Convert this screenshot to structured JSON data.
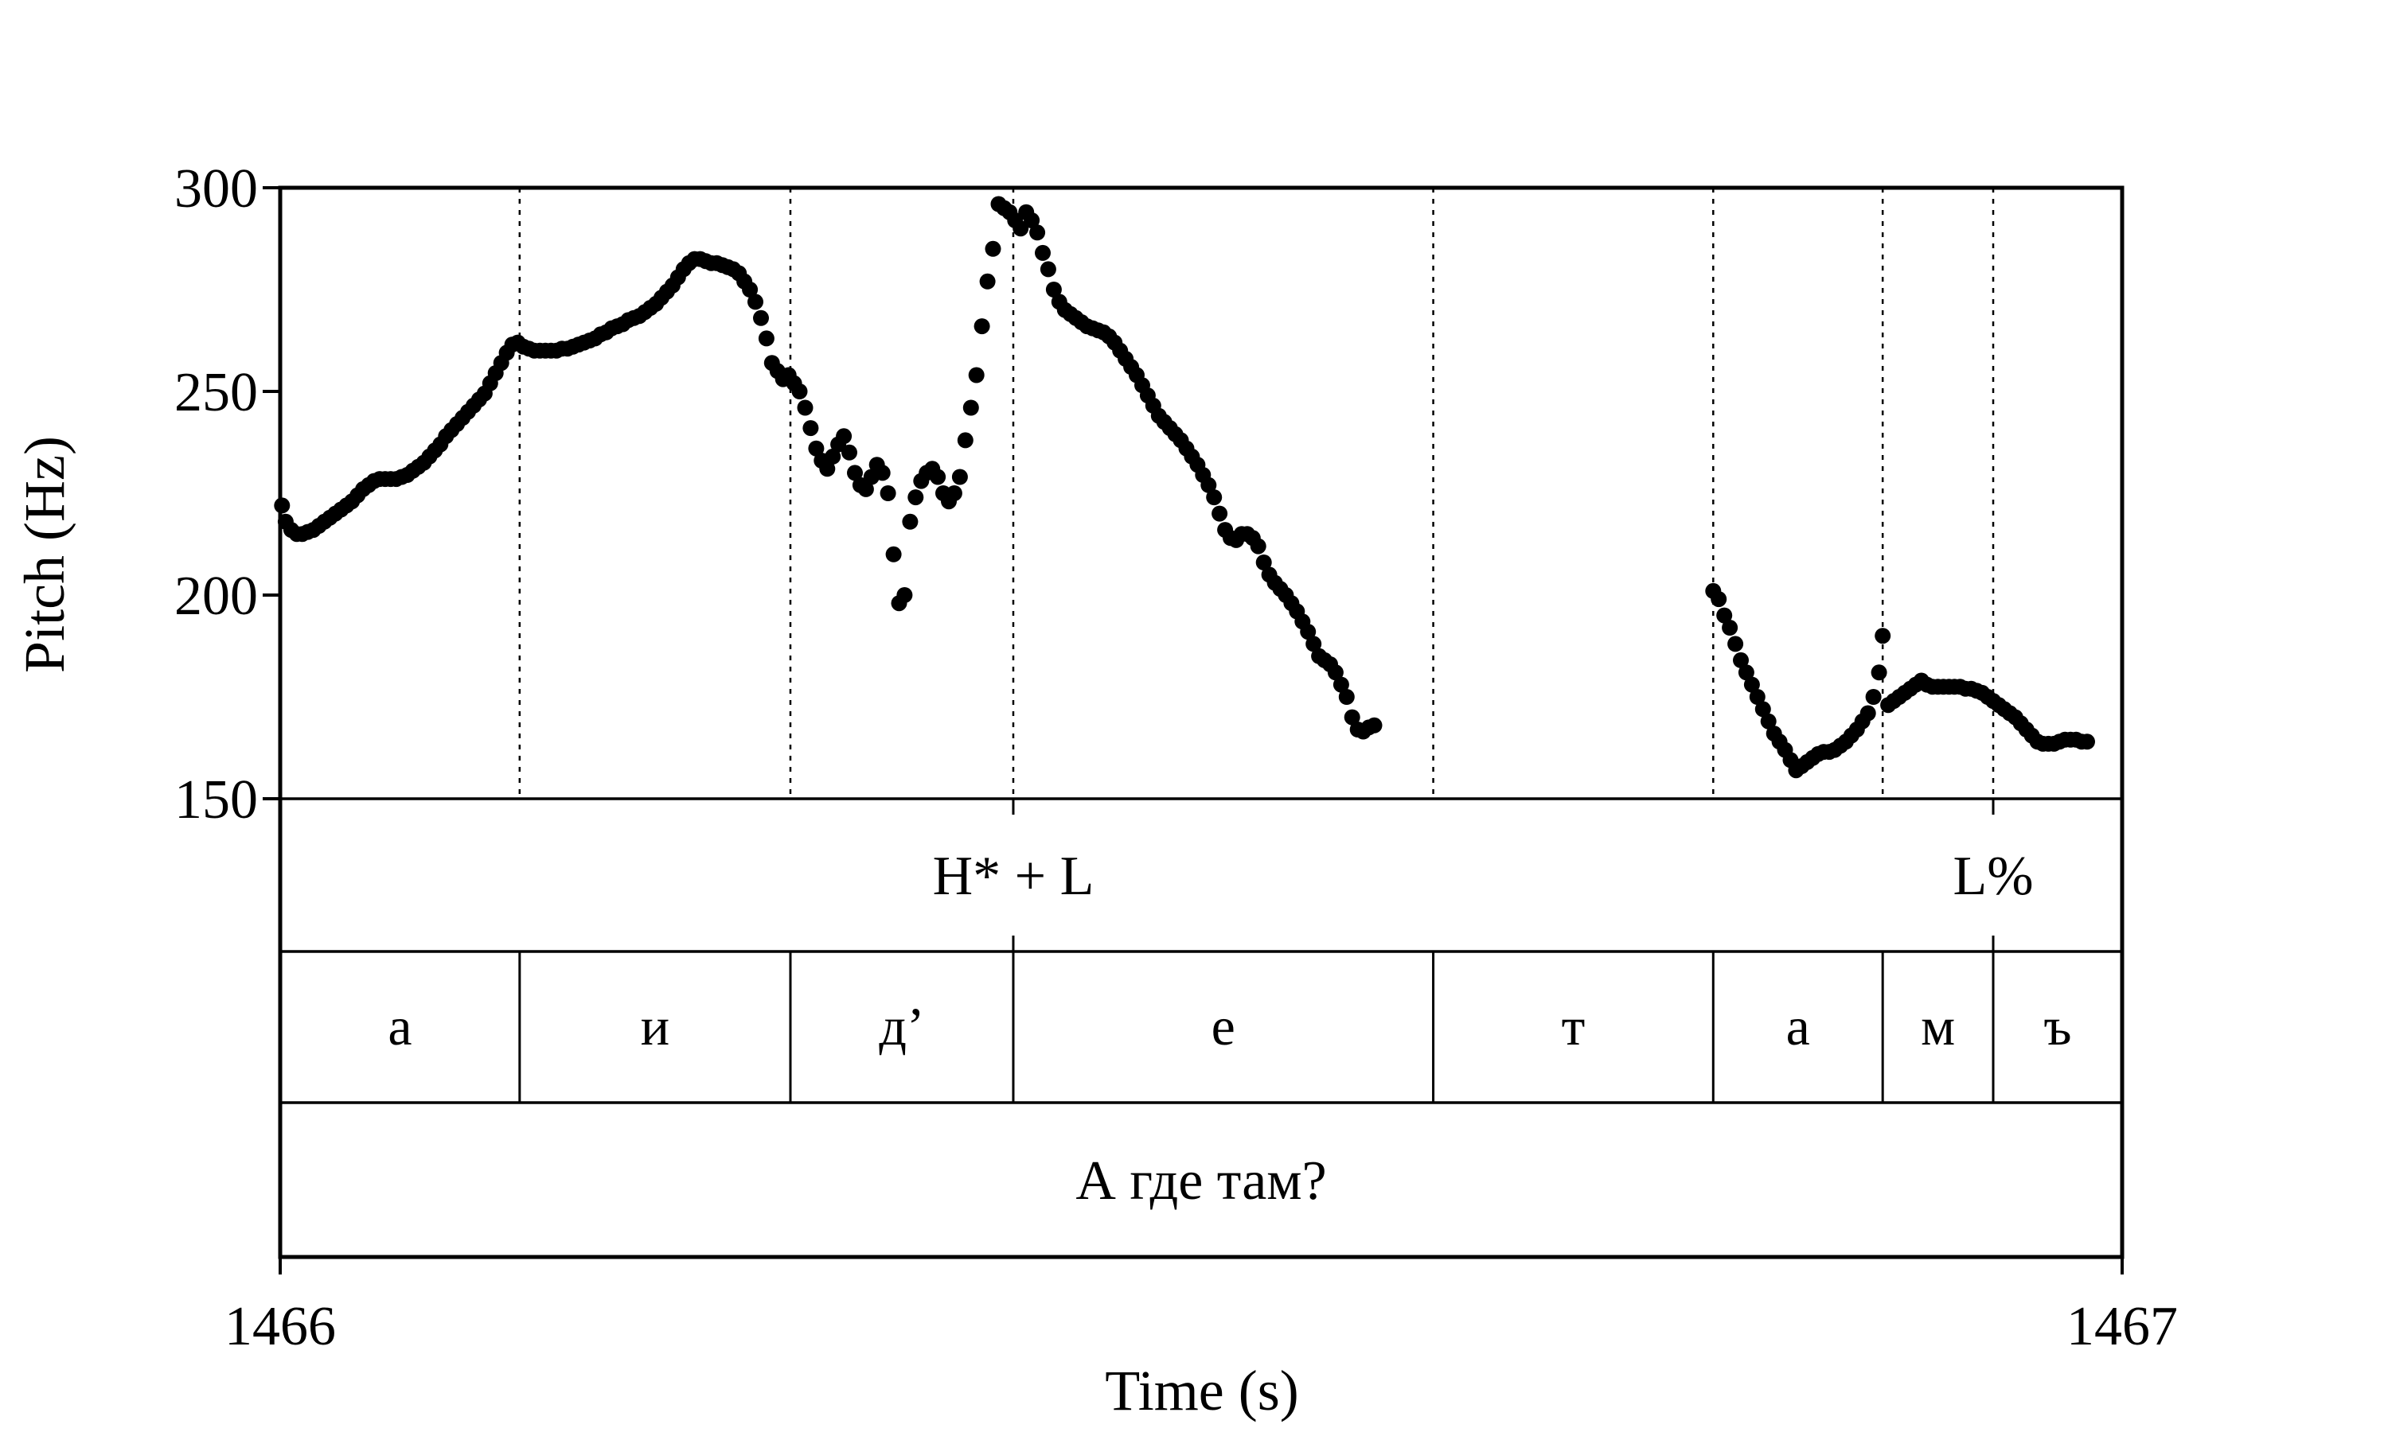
{
  "chart_data": {
    "type": "scatter",
    "xlabel": "Time (s)",
    "ylabel": "Pitch (Hz)",
    "xlim": [
      1466,
      1467
    ],
    "ylim": [
      150,
      300
    ],
    "x_ticks": [
      "1466",
      "1467"
    ],
    "y_ticks": [
      "300",
      "250",
      "200",
      "150"
    ],
    "series": [
      {
        "points": [
          [
            1466.001,
            222
          ],
          [
            1466.003,
            218
          ],
          [
            1466.006,
            216
          ],
          [
            1466.009,
            215
          ],
          [
            1466.012,
            215
          ],
          [
            1466.015,
            215.5
          ],
          [
            1466.018,
            216
          ],
          [
            1466.021,
            217
          ],
          [
            1466.024,
            218
          ],
          [
            1466.027,
            219
          ],
          [
            1466.03,
            220
          ],
          [
            1466.033,
            221
          ],
          [
            1466.036,
            222
          ],
          [
            1466.039,
            223
          ],
          [
            1466.042,
            224.5
          ],
          [
            1466.045,
            226
          ],
          [
            1466.048,
            227
          ],
          [
            1466.051,
            228
          ],
          [
            1466.054,
            228.5
          ],
          [
            1466.057,
            228.5
          ],
          [
            1466.06,
            228.5
          ],
          [
            1466.063,
            228.5
          ],
          [
            1466.066,
            229
          ],
          [
            1466.069,
            229.5
          ],
          [
            1466.072,
            230.5
          ],
          [
            1466.075,
            231.5
          ],
          [
            1466.078,
            232.5
          ],
          [
            1466.081,
            234
          ],
          [
            1466.084,
            235.5
          ],
          [
            1466.087,
            237
          ],
          [
            1466.09,
            239
          ],
          [
            1466.093,
            240.5
          ],
          [
            1466.096,
            242
          ],
          [
            1466.099,
            243.5
          ],
          [
            1466.102,
            245
          ],
          [
            1466.105,
            246.5
          ],
          [
            1466.108,
            248
          ],
          [
            1466.111,
            249.5
          ],
          [
            1466.114,
            252
          ],
          [
            1466.117,
            254.5
          ],
          [
            1466.12,
            257
          ],
          [
            1466.123,
            259.5
          ],
          [
            1466.126,
            261.5
          ],
          [
            1466.129,
            262
          ],
          [
            1466.132,
            261
          ],
          [
            1466.135,
            260.5
          ],
          [
            1466.138,
            260
          ],
          [
            1466.141,
            260
          ],
          [
            1466.144,
            260
          ],
          [
            1466.147,
            260
          ],
          [
            1466.15,
            260
          ],
          [
            1466.153,
            260.5
          ],
          [
            1466.156,
            260.5
          ],
          [
            1466.159,
            261
          ],
          [
            1466.162,
            261.5
          ],
          [
            1466.165,
            262
          ],
          [
            1466.168,
            262.5
          ],
          [
            1466.171,
            263
          ],
          [
            1466.174,
            264
          ],
          [
            1466.177,
            264.5
          ],
          [
            1466.18,
            265.5
          ],
          [
            1466.183,
            266
          ],
          [
            1466.186,
            266.5
          ],
          [
            1466.189,
            267.5
          ],
          [
            1466.192,
            268
          ],
          [
            1466.195,
            268.5
          ],
          [
            1466.198,
            269.5
          ],
          [
            1466.201,
            270.5
          ],
          [
            1466.204,
            271.5
          ],
          [
            1466.207,
            273
          ],
          [
            1466.21,
            274.5
          ],
          [
            1466.213,
            276
          ],
          [
            1466.216,
            278
          ],
          [
            1466.219,
            280
          ],
          [
            1466.222,
            281.5
          ],
          [
            1466.225,
            282.5
          ],
          [
            1466.228,
            282.5
          ],
          [
            1466.231,
            282
          ],
          [
            1466.234,
            281.5
          ],
          [
            1466.237,
            281.5
          ],
          [
            1466.24,
            281
          ],
          [
            1466.243,
            280.5
          ],
          [
            1466.246,
            280
          ],
          [
            1466.249,
            279
          ],
          [
            1466.252,
            277
          ],
          [
            1466.255,
            275
          ],
          [
            1466.258,
            272
          ],
          [
            1466.261,
            268
          ],
          [
            1466.264,
            263
          ],
          [
            1466.267,
            257
          ],
          [
            1466.27,
            255
          ],
          [
            1466.273,
            253
          ],
          [
            1466.276,
            254
          ],
          [
            1466.279,
            252
          ],
          [
            1466.282,
            250
          ],
          [
            1466.285,
            246
          ],
          [
            1466.288,
            241
          ],
          [
            1466.291,
            236
          ],
          [
            1466.294,
            233
          ],
          [
            1466.297,
            231
          ],
          [
            1466.3,
            234
          ],
          [
            1466.303,
            237
          ],
          [
            1466.306,
            239
          ],
          [
            1466.309,
            235
          ],
          [
            1466.312,
            230
          ],
          [
            1466.315,
            227
          ],
          [
            1466.318,
            226
          ],
          [
            1466.321,
            229
          ],
          [
            1466.324,
            232
          ],
          [
            1466.327,
            230
          ],
          [
            1466.33,
            225
          ],
          [
            1466.333,
            210
          ],
          [
            1466.336,
            198
          ],
          [
            1466.339,
            200
          ],
          [
            1466.342,
            218
          ],
          [
            1466.345,
            224
          ],
          [
            1466.348,
            228
          ],
          [
            1466.351,
            230
          ],
          [
            1466.354,
            231
          ],
          [
            1466.357,
            229
          ],
          [
            1466.36,
            225
          ],
          [
            1466.363,
            223
          ],
          [
            1466.366,
            225
          ],
          [
            1466.369,
            229
          ],
          [
            1466.372,
            238
          ],
          [
            1466.375,
            246
          ],
          [
            1466.378,
            254
          ],
          [
            1466.381,
            266
          ],
          [
            1466.384,
            277
          ],
          [
            1466.387,
            285
          ],
          [
            1466.39,
            296
          ],
          [
            1466.393,
            295
          ],
          [
            1466.396,
            294
          ],
          [
            1466.399,
            292
          ],
          [
            1466.402,
            290
          ],
          [
            1466.405,
            294
          ],
          [
            1466.408,
            292
          ],
          [
            1466.411,
            289
          ],
          [
            1466.414,
            284
          ],
          [
            1466.417,
            280
          ],
          [
            1466.42,
            275
          ],
          [
            1466.423,
            272
          ],
          [
            1466.426,
            270
          ],
          [
            1466.429,
            269
          ],
          [
            1466.432,
            268
          ],
          [
            1466.435,
            267
          ],
          [
            1466.438,
            266
          ],
          [
            1466.441,
            265.5
          ],
          [
            1466.444,
            265
          ],
          [
            1466.447,
            264.5
          ],
          [
            1466.45,
            263.5
          ],
          [
            1466.453,
            262
          ],
          [
            1466.456,
            260
          ],
          [
            1466.459,
            258
          ],
          [
            1466.462,
            256
          ],
          [
            1466.465,
            254
          ],
          [
            1466.468,
            251.5
          ],
          [
            1466.471,
            249
          ],
          [
            1466.474,
            246.5
          ],
          [
            1466.477,
            244
          ],
          [
            1466.48,
            242.5
          ],
          [
            1466.483,
            241
          ],
          [
            1466.486,
            239.5
          ],
          [
            1466.489,
            238
          ],
          [
            1466.492,
            236
          ],
          [
            1466.495,
            234
          ],
          [
            1466.498,
            232
          ],
          [
            1466.501,
            229.5
          ],
          [
            1466.504,
            227
          ],
          [
            1466.507,
            224
          ],
          [
            1466.51,
            220
          ],
          [
            1466.513,
            216
          ],
          [
            1466.516,
            214
          ],
          [
            1466.519,
            213.5
          ],
          [
            1466.522,
            215
          ],
          [
            1466.525,
            215
          ],
          [
            1466.528,
            214
          ],
          [
            1466.531,
            212
          ],
          [
            1466.534,
            208
          ],
          [
            1466.537,
            205
          ],
          [
            1466.54,
            203
          ],
          [
            1466.543,
            201.5
          ],
          [
            1466.546,
            200
          ],
          [
            1466.549,
            198
          ],
          [
            1466.552,
            196
          ],
          [
            1466.555,
            193.5
          ],
          [
            1466.558,
            191
          ],
          [
            1466.561,
            188
          ],
          [
            1466.564,
            185
          ],
          [
            1466.567,
            184
          ],
          [
            1466.57,
            183
          ],
          [
            1466.573,
            181
          ],
          [
            1466.576,
            178
          ],
          [
            1466.579,
            175
          ],
          [
            1466.582,
            170
          ],
          [
            1466.585,
            167
          ],
          [
            1466.588,
            166.5
          ],
          [
            1466.591,
            167.5
          ],
          [
            1466.594,
            168
          ],
          [
            1466.778,
            201
          ],
          [
            1466.781,
            199
          ],
          [
            1466.784,
            195
          ],
          [
            1466.787,
            192
          ],
          [
            1466.79,
            188
          ],
          [
            1466.793,
            184
          ],
          [
            1466.796,
            181
          ],
          [
            1466.799,
            178
          ],
          [
            1466.802,
            175
          ],
          [
            1466.805,
            172
          ],
          [
            1466.808,
            169
          ],
          [
            1466.811,
            166
          ],
          [
            1466.814,
            164
          ],
          [
            1466.817,
            162
          ],
          [
            1466.82,
            159.5
          ],
          [
            1466.823,
            157
          ],
          [
            1466.826,
            158
          ],
          [
            1466.829,
            159
          ],
          [
            1466.832,
            160
          ],
          [
            1466.835,
            161
          ],
          [
            1466.838,
            161.5
          ],
          [
            1466.841,
            161.5
          ],
          [
            1466.844,
            162
          ],
          [
            1466.847,
            163
          ],
          [
            1466.85,
            164
          ],
          [
            1466.853,
            165.5
          ],
          [
            1466.856,
            167
          ],
          [
            1466.859,
            169
          ],
          [
            1466.862,
            171
          ],
          [
            1466.865,
            175
          ],
          [
            1466.868,
            181
          ],
          [
            1466.87,
            190
          ],
          [
            1466.873,
            173
          ],
          [
            1466.876,
            174
          ],
          [
            1466.879,
            175
          ],
          [
            1466.882,
            176
          ],
          [
            1466.885,
            177
          ],
          [
            1466.888,
            178
          ],
          [
            1466.891,
            179
          ],
          [
            1466.894,
            178
          ],
          [
            1466.897,
            177.5
          ],
          [
            1466.9,
            177.5
          ],
          [
            1466.903,
            177.5
          ],
          [
            1466.906,
            177.5
          ],
          [
            1466.909,
            177.5
          ],
          [
            1466.912,
            177.5
          ],
          [
            1466.915,
            177
          ],
          [
            1466.918,
            177
          ],
          [
            1466.921,
            176.5
          ],
          [
            1466.924,
            176
          ],
          [
            1466.927,
            175
          ],
          [
            1466.93,
            174
          ],
          [
            1466.933,
            173
          ],
          [
            1466.936,
            172
          ],
          [
            1466.939,
            171
          ],
          [
            1466.942,
            170
          ],
          [
            1466.945,
            168.5
          ],
          [
            1466.948,
            167
          ],
          [
            1466.951,
            165.5
          ],
          [
            1466.954,
            164
          ],
          [
            1466.957,
            163.5
          ],
          [
            1466.96,
            163.5
          ],
          [
            1466.963,
            163.5
          ],
          [
            1466.966,
            164
          ],
          [
            1466.969,
            164.5
          ],
          [
            1466.972,
            164.5
          ],
          [
            1466.975,
            164.5
          ],
          [
            1466.978,
            164
          ],
          [
            1466.981,
            164
          ]
        ]
      }
    ],
    "boundaries": [
      1466.13,
      1466.277,
      1466.398,
      1466.626,
      1466.778,
      1466.87,
      1466.93
    ],
    "tiers": [
      {
        "name": "tones",
        "labels": [
          {
            "text": "H* + L",
            "x": 1466.398
          },
          {
            "text": "L%",
            "x": 1466.93
          }
        ]
      },
      {
        "name": "segments",
        "intervals": [
          {
            "text": "а",
            "start": 1466.0,
            "end": 1466.13
          },
          {
            "text": "и",
            "start": 1466.13,
            "end": 1466.277
          },
          {
            "text": "д’",
            "start": 1466.277,
            "end": 1466.398
          },
          {
            "text": "е",
            "start": 1466.398,
            "end": 1466.626
          },
          {
            "text": "т",
            "start": 1466.626,
            "end": 1466.778
          },
          {
            "text": "а",
            "start": 1466.778,
            "end": 1466.87
          },
          {
            "text": "м",
            "start": 1466.87,
            "end": 1466.93
          },
          {
            "text": "ъ",
            "start": 1466.93,
            "end": 1467.0
          }
        ]
      },
      {
        "name": "sentence",
        "text": "А где там?"
      }
    ]
  }
}
